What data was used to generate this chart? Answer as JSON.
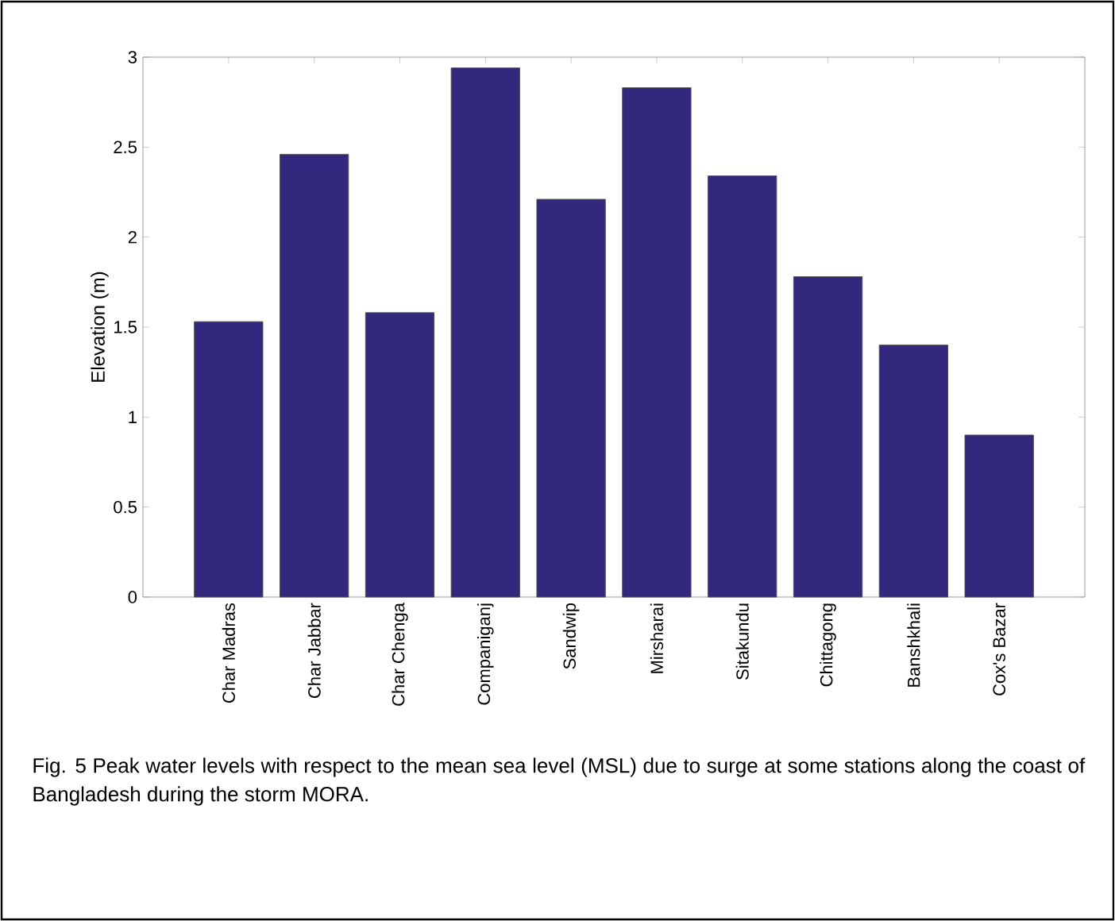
{
  "chart_data": {
    "type": "bar",
    "ylabel": "Elevation (m)",
    "categories": [
      "Char Madras",
      "Char Jabbar",
      "Char Chenga",
      "Companiganj",
      "Sandwip",
      "Mirsharai",
      "Sitakundu",
      "Chittagong",
      "Banshkhali",
      "Cox's Bazar"
    ],
    "values": [
      1.53,
      2.46,
      1.58,
      2.94,
      2.21,
      2.83,
      2.34,
      1.78,
      1.4,
      0.9
    ],
    "color": "#32287e",
    "ylim": [
      0,
      3
    ],
    "yticks": [
      0,
      0.5,
      1,
      1.5,
      2,
      2.5,
      3
    ],
    "annotations": [
      "Fig. 5 Peak water levels with respect to the mean sea level (MSL) due to surge at some stations along the coast of Bangladesh during the storm MORA."
    ]
  }
}
